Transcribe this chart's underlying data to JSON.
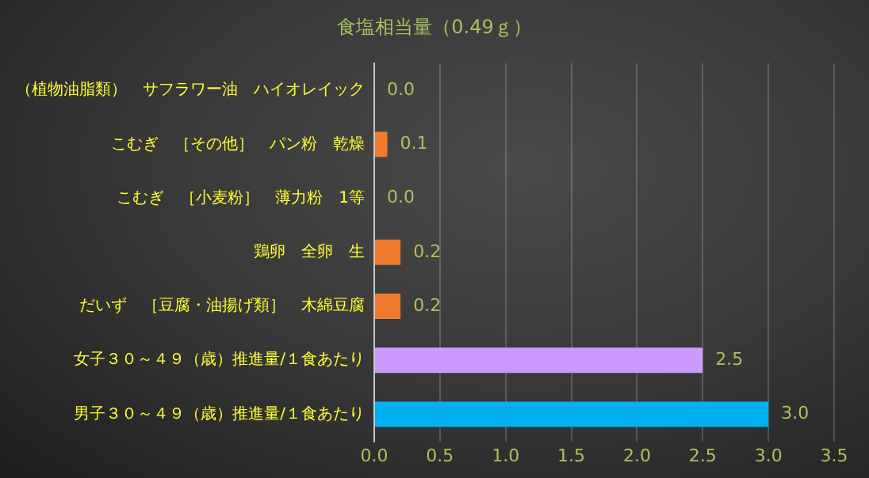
{
  "chart_data": {
    "type": "bar",
    "orientation": "horizontal",
    "title": "食塩相当量（0.49ｇ）",
    "categories": [
      "（植物油脂類）　サフラワー油　ハイオレイック",
      "こむぎ　［その他］　パン粉　乾燥",
      "こむぎ　［小麦粉］　薄力粉　1等",
      "鶏卵　全卵　生",
      "だいず　［豆腐・油揚げ類］　木綿豆腐",
      "女子３０～４９（歳）推進量/１食あたり",
      "男子３０～４９（歳）推進量/１食あたり"
    ],
    "values": [
      0.0,
      0.1,
      0.0,
      0.2,
      0.2,
      2.5,
      3.0
    ],
    "value_labels": [
      "0.0",
      "0.1",
      "0.0",
      "0.2",
      "0.2",
      "2.5",
      "3.0"
    ],
    "colors": [
      "#f07a30",
      "#f07a30",
      "#f07a30",
      "#f07a30",
      "#f07a30",
      "#cc99ff",
      "#00b0f0"
    ],
    "xlim": [
      0,
      3.5
    ],
    "xticks": [
      {
        "value": 0,
        "label": "0.0"
      },
      {
        "value": 0.5,
        "label": "0.5"
      },
      {
        "value": 1,
        "label": "1.0"
      },
      {
        "value": 1.5,
        "label": "1.5"
      },
      {
        "value": 2,
        "label": "2.0"
      },
      {
        "value": 2.5,
        "label": "2.5"
      },
      {
        "value": 3,
        "label": "3.0"
      },
      {
        "value": 3.5,
        "label": "3.5"
      }
    ],
    "grid": "x",
    "legend": false
  }
}
